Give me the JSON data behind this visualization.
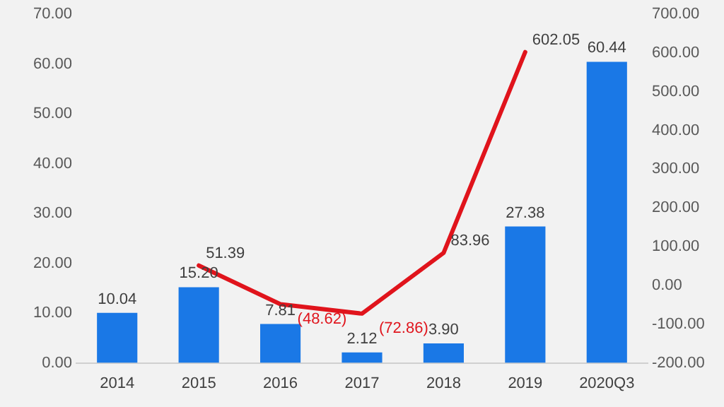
{
  "chart_data": {
    "type": "bar",
    "categories": [
      "2014",
      "2015",
      "2016",
      "2017",
      "2018",
      "2019",
      "2020Q3"
    ],
    "series": [
      {
        "color": "#1a78e6",
        "values": [
          10.04,
          15.2,
          7.81,
          2.12,
          3.9,
          27.38,
          60.44
        ],
        "value_labels": [
          "10.04",
          "15.20",
          "7.81",
          "2.12",
          "3.90",
          "27.38",
          "60.44"
        ]
      },
      {
        "type": "line",
        "axis": "y2",
        "color": "#e0141c",
        "values": [
          null,
          51.39,
          -48.62,
          -72.86,
          83.96,
          602.05,
          null
        ],
        "value_labels": [
          null,
          "51.39",
          "(48.62)",
          "(72.86)",
          "83.96",
          "602.05",
          null
        ]
      }
    ],
    "ylim": [
      0,
      70
    ],
    "yticks": [
      {
        "value": 0,
        "label": "0.00"
      },
      {
        "value": 10,
        "label": "10.00"
      },
      {
        "value": 20,
        "label": "20.00"
      },
      {
        "value": 30,
        "label": "30.00"
      },
      {
        "value": 40,
        "label": "40.00"
      },
      {
        "value": 50,
        "label": "50.00"
      },
      {
        "value": 60,
        "label": "60.00"
      },
      {
        "value": 70,
        "label": "70.00"
      }
    ],
    "y2lim": [
      -200,
      700
    ],
    "y2ticks": [
      {
        "value": -200,
        "label": "-200.00"
      },
      {
        "value": -100,
        "label": "-100.00"
      },
      {
        "value": 0,
        "label": "0.00"
      },
      {
        "value": 100,
        "label": "100.00"
      },
      {
        "value": 200,
        "label": "200.00"
      },
      {
        "value": 300,
        "label": "300.00"
      },
      {
        "value": 400,
        "label": "400.00"
      },
      {
        "value": 500,
        "label": "500.00"
      },
      {
        "value": 600,
        "label": "600.00"
      },
      {
        "value": 700,
        "label": "700.00"
      }
    ],
    "grid": false,
    "legend": false,
    "marker": "none"
  }
}
